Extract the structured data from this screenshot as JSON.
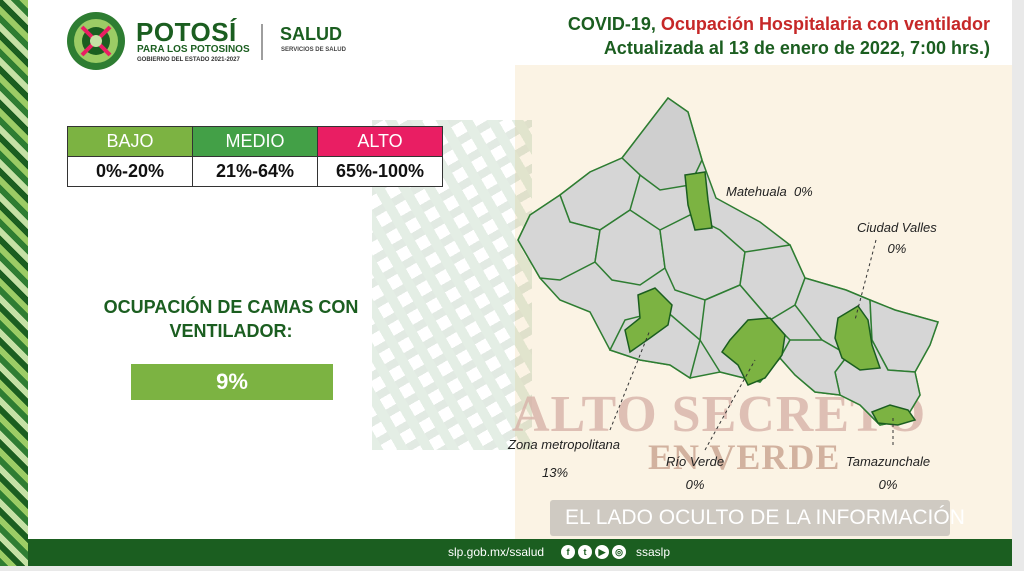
{
  "header": {
    "brand": "POTOSÍ",
    "brand_sub": "PARA LOS POTOSINOS",
    "brand_gov": "GOBIERNO DEL ESTADO 2021-2027",
    "dept": "SALUD",
    "dept_sub": "SERVICIOS DE SALUD",
    "title_lead": "COVID-19,",
    "title_main": "Ocupación Hospitalaria con ventilador",
    "subtitle": "Actualizada al 13 de enero de 2022, 7:00 hrs.)"
  },
  "legend": [
    {
      "label": "BAJO",
      "range": "0%-20%",
      "color": "#7cb342"
    },
    {
      "label": "MEDIO",
      "range": "21%-64%",
      "color": "#43a047"
    },
    {
      "label": "ALTO",
      "range": "65%-100%",
      "color": "#e91e63"
    }
  ],
  "occupancy": {
    "label": "OCUPACIÓN DE CAMAS CON VENTILADOR:",
    "value": "9%",
    "color": "#7cb342"
  },
  "regions": [
    {
      "name": "Matehuala",
      "value": "0%"
    },
    {
      "name": "Ciudad Valles",
      "value": "0%"
    },
    {
      "name": "Zona metropolitana",
      "value": "13%"
    },
    {
      "name": "Río Verde",
      "value": "0%"
    },
    {
      "name": "Tamazunchale",
      "value": "0%"
    }
  ],
  "watermark": {
    "text": "ALTO SECRETO",
    "sub": "EN VERDE",
    "caption": "EL LADO OCULTO DE LA INFORMACIÓN"
  },
  "footer": {
    "url": "slp.gob.mx/ssalud",
    "handle": "ssaslp",
    "icons": [
      "facebook-icon",
      "twitter-icon",
      "youtube-icon",
      "instagram-icon"
    ]
  },
  "colors": {
    "dark_green": "#1b5e20",
    "light_green": "#7cb342",
    "map_gray": "#d6d6d6",
    "map_border": "#2e7d32",
    "accent_red": "#c62828"
  }
}
